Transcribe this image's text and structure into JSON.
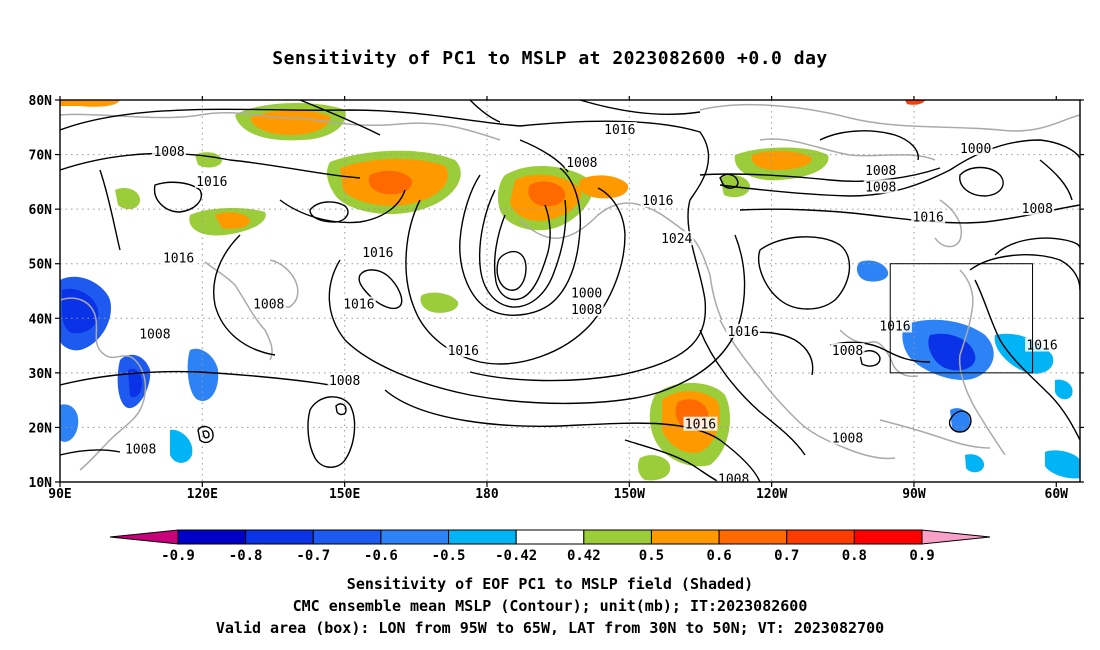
{
  "title": "Sensitivity of PC1 to MSLP at 2023082600 +0.0 day",
  "map": {
    "lon_range_deg": [
      90,
      305
    ],
    "lat_range_deg": [
      10,
      80
    ],
    "lat_labels": [
      "80N",
      "70N",
      "60N",
      "50N",
      "40N",
      "30N",
      "20N",
      "10N"
    ],
    "lat_values": [
      80,
      70,
      60,
      50,
      40,
      30,
      20,
      10
    ],
    "lon_labels": [
      "90E",
      "120E",
      "150E",
      "180",
      "150W",
      "120W",
      "90W",
      "60W"
    ],
    "lon_values": [
      90,
      120,
      150,
      180,
      210,
      240,
      270,
      300
    ],
    "contour_labels": [
      {
        "text": "1016",
        "lon": 208,
        "lat": 74.5
      },
      {
        "text": "1008",
        "lon": 113,
        "lat": 70.5
      },
      {
        "text": "1008",
        "lon": 200,
        "lat": 68.5
      },
      {
        "text": "1000",
        "lon": 283,
        "lat": 71
      },
      {
        "text": "1008",
        "lon": 263,
        "lat": 67
      },
      {
        "text": "1008",
        "lon": 263,
        "lat": 64
      },
      {
        "text": "1016",
        "lon": 122,
        "lat": 65
      },
      {
        "text": "1016",
        "lon": 216,
        "lat": 61.5
      },
      {
        "text": "1008",
        "lon": 296,
        "lat": 60
      },
      {
        "text": "1016",
        "lon": 273,
        "lat": 58.5
      },
      {
        "text": "1024",
        "lon": 220,
        "lat": 54.5
      },
      {
        "text": "1016",
        "lon": 115,
        "lat": 51
      },
      {
        "text": "1016",
        "lon": 157,
        "lat": 52
      },
      {
        "text": "1000",
        "lon": 201,
        "lat": 44.5
      },
      {
        "text": "1008",
        "lon": 201,
        "lat": 41.5
      },
      {
        "text": "1008",
        "lon": 134,
        "lat": 42.5
      },
      {
        "text": "1016",
        "lon": 153,
        "lat": 42.5
      },
      {
        "text": "1016",
        "lon": 266,
        "lat": 38.5
      },
      {
        "text": "1016",
        "lon": 234,
        "lat": 37.5
      },
      {
        "text": "1008",
        "lon": 110,
        "lat": 37
      },
      {
        "text": "1008",
        "lon": 256,
        "lat": 34
      },
      {
        "text": "1016",
        "lon": 175,
        "lat": 34
      },
      {
        "text": "1016",
        "lon": 297,
        "lat": 35
      },
      {
        "text": "1008",
        "lon": 150,
        "lat": 28.5
      },
      {
        "text": "1016",
        "lon": 225,
        "lat": 20.5
      },
      {
        "text": "1008",
        "lon": 256,
        "lat": 18
      },
      {
        "text": "1008",
        "lon": 107,
        "lat": 16
      },
      {
        "text": "1008",
        "lon": 232,
        "lat": 10.5
      }
    ],
    "valid_box": {
      "lon_range": [
        265,
        295
      ],
      "lat_range": [
        30,
        50
      ]
    }
  },
  "colorbar": {
    "tick_labels": [
      "-0.9",
      "-0.8",
      "-0.7",
      "-0.6",
      "-0.5",
      "-0.42",
      "0.42",
      "0.5",
      "0.6",
      "0.7",
      "0.8",
      "0.9"
    ],
    "colors": [
      "#0000c8",
      "#0a32e6",
      "#1e5af0",
      "#2d82f5",
      "#00b4f5",
      "#ffffff",
      "#9bcc3a",
      "#ff9900",
      "#ff6a00",
      "#ff3c00",
      "#ff0000"
    ],
    "under_color": "#c8007a",
    "over_color": "#f8a0c8"
  },
  "captions": [
    "Sensitivity of EOF PC1 to MSLP field (Shaded)",
    "CMC ensemble mean MSLP (Contour); unit(mb); IT:2023082600",
    "Valid area (box): LON from 95W to 65W, LAT from 30N to 50N; VT: 2023082700"
  ]
}
